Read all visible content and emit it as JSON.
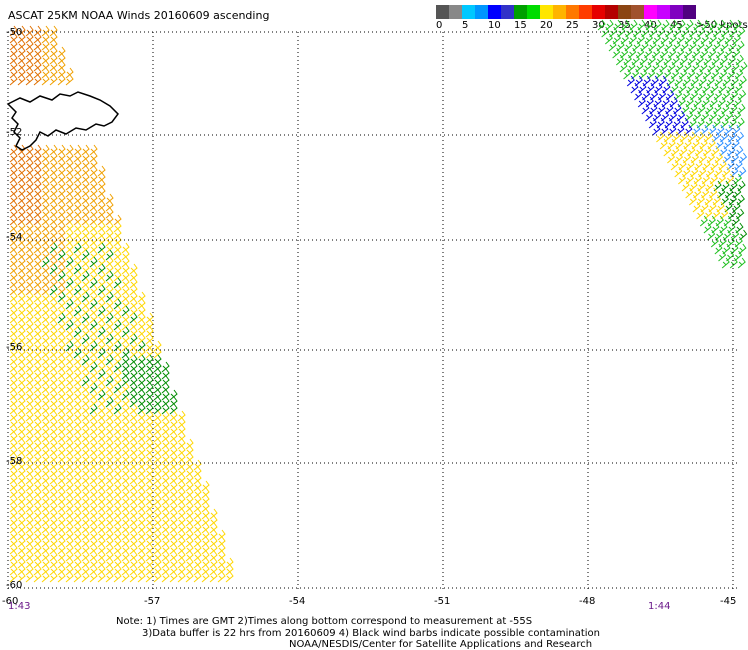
{
  "title": "ASCAT 25KM NOAA Winds 20160609 ascending",
  "scale": {
    "colors": [
      "#555555",
      "#888888",
      "#00c8ff",
      "#0096ff",
      "#0000ff",
      "#3232c8",
      "#00a000",
      "#00dc00",
      "#ffe600",
      "#ffb400",
      "#ff7800",
      "#ff3c00",
      "#e60000",
      "#b40000",
      "#8b4513",
      "#a0522d",
      "#ff00ff",
      "#c800ff",
      "#8000c0",
      "#500080"
    ],
    "labels": [
      "0",
      "5",
      "10",
      "15",
      "20",
      "25",
      "30",
      "35",
      "40",
      "45",
      ">50 knots"
    ]
  },
  "axes": {
    "lon_ticks": [
      "-60",
      "-57",
      "-54",
      "-51",
      "-48",
      "-45"
    ],
    "lat_ticks": [
      "-50",
      "-52",
      "-54",
      "-56",
      "-58",
      "-60"
    ]
  },
  "times": {
    "left": "1:43",
    "right": "1:44"
  },
  "notes": {
    "line1": "Note: 1) Times are GMT 2)Times along bottom correspond to measurement at -55S",
    "line2": "3)Data buffer is 22 hrs from 20160609 4) Black wind barbs indicate possible contamination",
    "line3": "NOAA/NESDIS/Center for Satellite Applications and Research"
  },
  "wind_colors": {
    "yellow": "#ffd700",
    "orange": "#f0a000",
    "darkorange": "#e07000",
    "green": "#008c00",
    "lightgreen": "#20c020",
    "blue": "#0000e0",
    "lightblue": "#3090ff"
  }
}
